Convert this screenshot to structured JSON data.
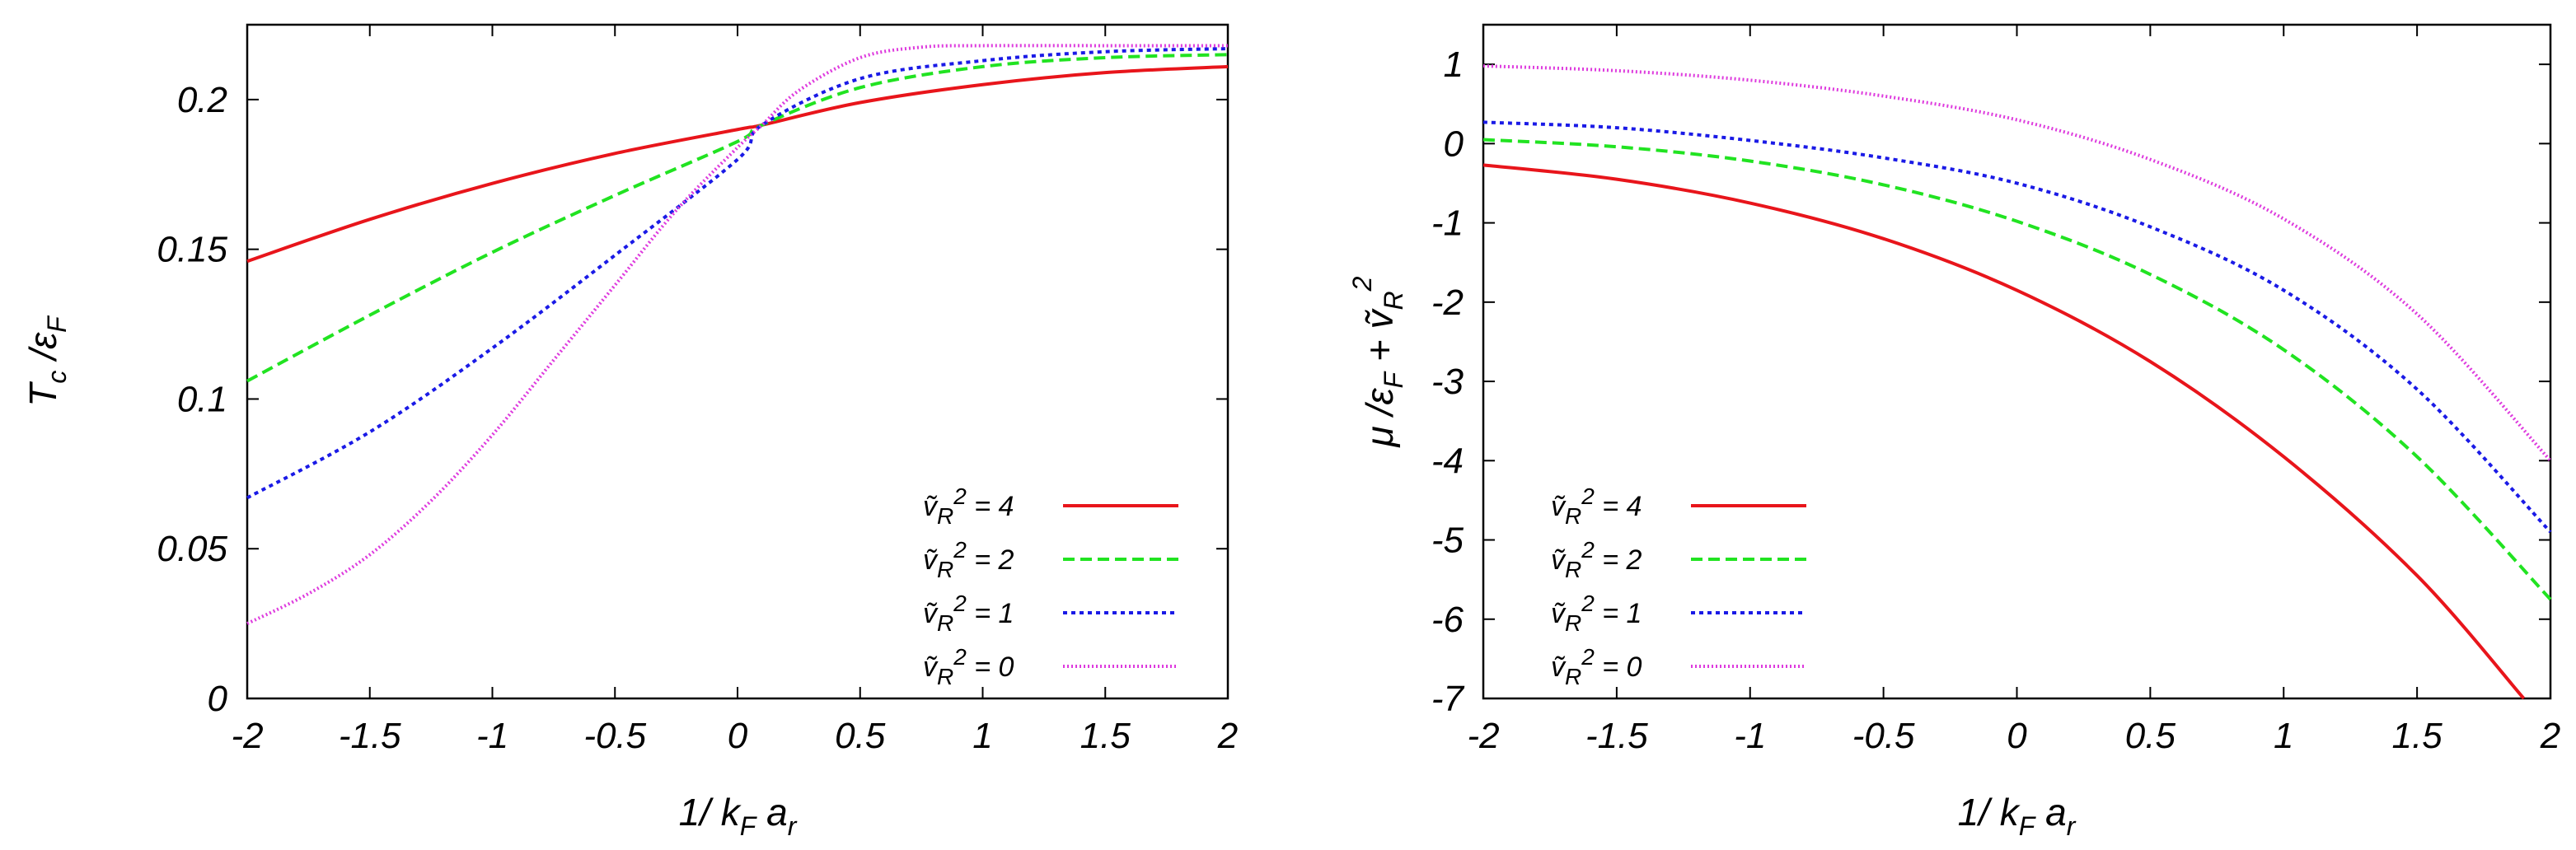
{
  "chart_data": [
    {
      "type": "line",
      "xlabel": {
        "main": "1/ k",
        "k_sub": "F",
        "a": " a",
        "a_sub": "r"
      },
      "ylabel": {
        "T": "T",
        "T_sub": "c",
        "slash": " /",
        "eps": "ε",
        "eps_sub": "F"
      },
      "xlim": [
        -2,
        2
      ],
      "ylim": [
        0,
        0.225
      ],
      "xticks": [
        "-2",
        "-1.5",
        "-1",
        "-0.5",
        "0",
        "0.5",
        "1",
        "1.5",
        "2"
      ],
      "yticks": [
        "0",
        "0.05",
        "0.1",
        "0.15",
        "0.2"
      ],
      "legend_position": "bottom-right",
      "series": [
        {
          "name": "ṽR² = 4",
          "legend": {
            "v": "ṽ",
            "sub": "R",
            "sup": "2",
            "eq": " = 4"
          },
          "color": "#e8151b",
          "style": "solid",
          "x": [
            -2,
            -1.5,
            -1,
            -0.5,
            0,
            0.1,
            0.5,
            1,
            1.5,
            2
          ],
          "y": [
            0.146,
            0.16,
            0.172,
            0.182,
            0.19,
            0.1915,
            0.199,
            0.205,
            0.209,
            0.211
          ]
        },
        {
          "name": "ṽR² = 2",
          "legend": {
            "v": "ṽ",
            "sub": "R",
            "sup": "2",
            "eq": " = 2"
          },
          "color": "#21e321",
          "style": "dashed",
          "x": [
            -2,
            -1.5,
            -1,
            -0.5,
            0,
            0.1,
            0.5,
            1,
            1.5,
            2
          ],
          "y": [
            0.106,
            0.128,
            0.149,
            0.168,
            0.186,
            0.1915,
            0.204,
            0.211,
            0.214,
            0.215
          ]
        },
        {
          "name": "ṽR² = 1",
          "legend": {
            "v": "ṽ",
            "sub": "R",
            "sup": "2",
            "eq": " = 1"
          },
          "color": "#1a1ae6",
          "style": "dotted",
          "x": [
            -2,
            -1.5,
            -1,
            -0.5,
            0,
            0.1,
            0.5,
            1,
            1.5,
            2
          ],
          "y": [
            0.067,
            0.089,
            0.117,
            0.148,
            0.18,
            0.1915,
            0.207,
            0.213,
            0.216,
            0.217
          ]
        },
        {
          "name": "ṽR² = 0",
          "legend": {
            "v": "ṽ",
            "sub": "R",
            "sup": "2",
            "eq": " = 0"
          },
          "color": "#de3bde",
          "style": "fine-dotted",
          "x": [
            -2,
            -1.75,
            -1.5,
            -1.25,
            -1,
            -0.75,
            -0.5,
            -0.25,
            0,
            0.1,
            0.25,
            0.5,
            0.75,
            1,
            1.5,
            2
          ],
          "y": [
            0.025,
            0.035,
            0.048,
            0.066,
            0.088,
            0.113,
            0.138,
            0.163,
            0.184,
            0.1915,
            0.203,
            0.214,
            0.2175,
            0.218,
            0.218,
            0.218
          ]
        }
      ]
    },
    {
      "type": "line",
      "xlabel": {
        "main": "1/ k",
        "k_sub": "F",
        "a": " a",
        "a_sub": "r"
      },
      "ylabel": {
        "mu": "μ /ε",
        "eps_sub": "F",
        "plus": " + ",
        "v": "ṽ",
        "v_sub": "R",
        "v_sup": "2"
      },
      "xlim": [
        -2,
        2
      ],
      "ylim": [
        -7,
        1.5
      ],
      "xticks": [
        "-2",
        "-1.5",
        "-1",
        "-0.5",
        "0",
        "0.5",
        "1",
        "1.5",
        "2"
      ],
      "yticks": [
        "-7",
        "-6",
        "-5",
        "-4",
        "-3",
        "-2",
        "-1",
        "0",
        "1"
      ],
      "legend_position": "bottom-left",
      "series": [
        {
          "name": "ṽR² = 4",
          "legend": {
            "v": "ṽ",
            "sub": "R",
            "sup": "2",
            "eq": " = 4"
          },
          "color": "#e8151b",
          "style": "solid",
          "x": [
            -2,
            -1.5,
            -1,
            -0.5,
            0,
            0.5,
            1,
            1.5,
            1.9
          ],
          "y": [
            -0.27,
            -0.45,
            -0.75,
            -1.2,
            -1.85,
            -2.75,
            -3.95,
            -5.45,
            -7.0
          ]
        },
        {
          "name": "ṽR² = 2",
          "legend": {
            "v": "ṽ",
            "sub": "R",
            "sup": "2",
            "eq": " = 2"
          },
          "color": "#21e321",
          "style": "dashed",
          "x": [
            -2,
            -1.5,
            -1,
            -0.5,
            0,
            0.5,
            1,
            1.5,
            2
          ],
          "y": [
            0.05,
            -0.04,
            -0.22,
            -0.52,
            -0.98,
            -1.65,
            -2.6,
            -3.95,
            -5.75
          ]
        },
        {
          "name": "ṽR² = 1",
          "legend": {
            "v": "ṽ",
            "sub": "R",
            "sup": "2",
            "eq": " = 1"
          },
          "color": "#1a1ae6",
          "style": "dotted",
          "x": [
            -2,
            -1.5,
            -1,
            -0.5,
            0,
            0.5,
            1,
            1.5,
            2
          ],
          "y": [
            0.27,
            0.2,
            0.04,
            -0.18,
            -0.5,
            -1.05,
            -1.85,
            -3.1,
            -4.9
          ]
        },
        {
          "name": "ṽR² = 0",
          "legend": {
            "v": "ṽ",
            "sub": "R",
            "sup": "2",
            "eq": " = 0"
          },
          "color": "#de3bde",
          "style": "fine-dotted",
          "x": [
            -2,
            -1.5,
            -1,
            -0.5,
            0,
            0.5,
            1,
            1.5,
            2
          ],
          "y": [
            0.98,
            0.92,
            0.8,
            0.6,
            0.3,
            -0.2,
            -0.95,
            -2.15,
            -4.0
          ]
        }
      ]
    }
  ]
}
